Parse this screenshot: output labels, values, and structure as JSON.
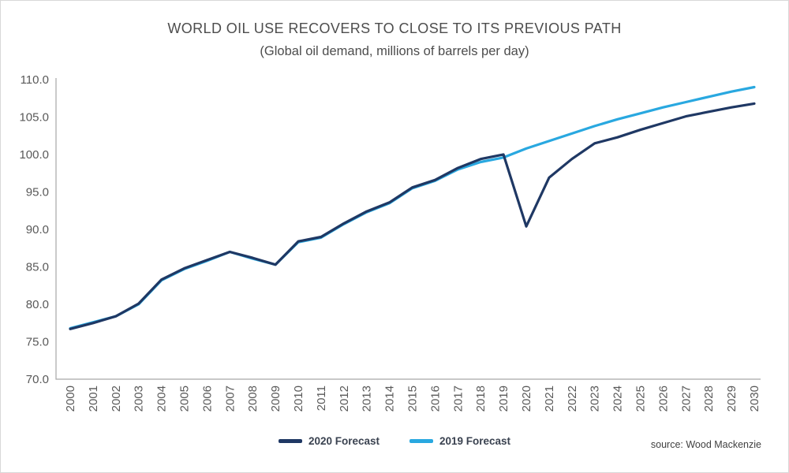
{
  "chart": {
    "title": "WORLD OIL USE RECOVERS TO CLOSE TO ITS PREVIOUS PATH",
    "subtitle": "(Global oil demand, millions of barrels per day)",
    "source": "source: Wood Mackenzie"
  },
  "legend": {
    "items": [
      {
        "label": "2020 Forecast",
        "color": "#1f3864"
      },
      {
        "label": "2019 Forecast",
        "color": "#29a8e0"
      }
    ]
  },
  "chart_data": {
    "type": "line",
    "title": "WORLD OIL USE RECOVERS TO CLOSE TO ITS PREVIOUS PATH",
    "subtitle": "(Global oil demand, millions of barrels per day)",
    "xlabel": "",
    "ylabel": "",
    "grid": false,
    "legend_position": "bottom",
    "axis_color": "#a6a6a6",
    "tick_label_color": "#595959",
    "ylim": [
      70,
      110
    ],
    "yticks": [
      70,
      75,
      80,
      85,
      90,
      95,
      100,
      105,
      110
    ],
    "ytick_labels": [
      "70.0",
      "75.0",
      "80.0",
      "85.0",
      "90.0",
      "95.0",
      "100.0",
      "105.0",
      "110.0"
    ],
    "categories": [
      "2000",
      "2001",
      "2002",
      "2003",
      "2004",
      "2005",
      "2006",
      "2007",
      "2008",
      "2009",
      "2010",
      "2011",
      "2012",
      "2013",
      "2014",
      "2015",
      "2016",
      "2017",
      "2018",
      "2019",
      "2020",
      "2021",
      "2022",
      "2023",
      "2024",
      "2025",
      "2026",
      "2027",
      "2028",
      "2029",
      "2030"
    ],
    "series": [
      {
        "name": "2019 Forecast",
        "color": "#29a8e0",
        "values": [
          76.8,
          77.6,
          78.4,
          80.0,
          83.2,
          84.7,
          85.8,
          87.0,
          86.1,
          85.3,
          88.3,
          88.9,
          90.7,
          92.3,
          93.5,
          95.5,
          96.5,
          98.0,
          99.0,
          99.6,
          100.8,
          101.8,
          102.8,
          103.8,
          104.7,
          105.5,
          106.3,
          107.0,
          107.7,
          108.4,
          109.0
        ]
      },
      {
        "name": "2020 Forecast",
        "color": "#1f3864",
        "values": [
          76.7,
          77.5,
          78.4,
          80.1,
          83.3,
          84.8,
          85.9,
          87.0,
          86.2,
          85.3,
          88.4,
          89.0,
          90.8,
          92.4,
          93.6,
          95.6,
          96.6,
          98.2,
          99.4,
          100.0,
          90.4,
          96.9,
          99.4,
          101.5,
          102.3,
          103.3,
          104.2,
          105.1,
          105.7,
          106.3,
          106.8
        ]
      }
    ],
    "source": "source: Wood Mackenzie"
  }
}
